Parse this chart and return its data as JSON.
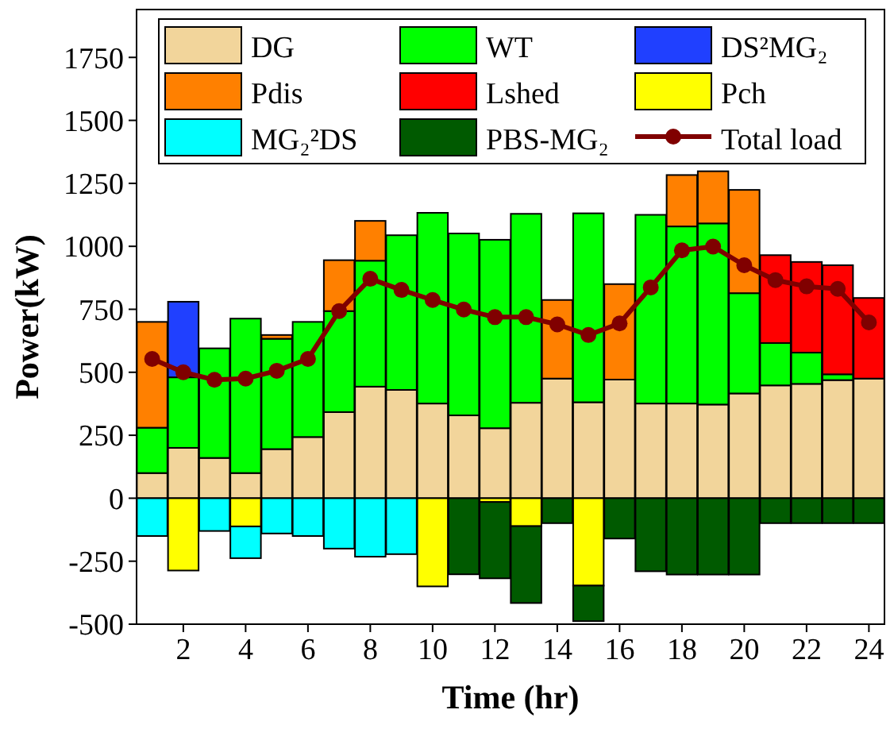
{
  "chart_data": {
    "type": "bar",
    "stacked": true,
    "xlabel": "Time (hr)",
    "ylabel": "Power(kW)",
    "x": [
      1,
      2,
      3,
      4,
      5,
      6,
      7,
      8,
      9,
      10,
      11,
      12,
      13,
      14,
      15,
      16,
      17,
      18,
      19,
      20,
      21,
      22,
      23,
      24
    ],
    "xlim": [
      0.5,
      24.5
    ],
    "xticks": [
      2,
      4,
      6,
      8,
      10,
      12,
      14,
      16,
      18,
      20,
      22,
      24
    ],
    "ylim": [
      -500,
      1940
    ],
    "yticks": [
      -500,
      -250,
      0,
      250,
      500,
      750,
      1000,
      1250,
      1500,
      1750
    ],
    "grid": false,
    "legend": "top",
    "series": [
      {
        "name": "DG",
        "color": "#f2d59b",
        "values": [
          100,
          200,
          160,
          100,
          195,
          243,
          342,
          443,
          430,
          376,
          329,
          278,
          379,
          475,
          381,
          471,
          376,
          376,
          372,
          416,
          448,
          454,
          469,
          475
        ]
      },
      {
        "name": "WT",
        "color": "#00ff00",
        "values": [
          180,
          280,
          435,
          613,
          438,
          457,
          401,
          500,
          614,
          757,
          722,
          748,
          750,
          0,
          750,
          0,
          749,
          703,
          719,
          398,
          168,
          124,
          23,
          0
        ]
      },
      {
        "name": "DS²MG₂",
        "color": "#2040ff",
        "values": [
          0,
          300,
          0,
          0,
          0,
          0,
          0,
          0,
          0,
          0,
          0,
          0,
          0,
          0,
          0,
          0,
          0,
          0,
          0,
          0,
          0,
          0,
          0,
          0
        ]
      },
      {
        "name": "Pdis",
        "color": "#ff8000",
        "values": [
          420,
          0,
          0,
          0,
          15,
          0,
          202,
          158,
          0,
          0,
          0,
          0,
          0,
          312,
          0,
          379,
          0,
          204,
          207,
          410,
          0,
          0,
          0,
          0
        ]
      },
      {
        "name": "Lshed",
        "color": "#ff0000",
        "values": [
          0,
          0,
          0,
          0,
          0,
          0,
          0,
          0,
          0,
          0,
          0,
          0,
          0,
          0,
          0,
          0,
          0,
          0,
          0,
          0,
          349,
          360,
          433,
          320
        ]
      },
      {
        "name": "Pch",
        "color": "#ffff00",
        "values": [
          0,
          -287,
          0,
          -112,
          0,
          0,
          0,
          0,
          0,
          -350,
          0,
          -15,
          -111,
          0,
          -347,
          0,
          0,
          0,
          0,
          0,
          0,
          0,
          0,
          0
        ]
      },
      {
        "name": "MG₂²DS",
        "color": "#00ffff",
        "values": [
          -150,
          0,
          -130,
          -126,
          -140,
          -150,
          -200,
          -232,
          -222,
          0,
          0,
          0,
          0,
          0,
          0,
          0,
          0,
          0,
          0,
          0,
          0,
          0,
          0,
          0
        ]
      },
      {
        "name": "PBS-MG₂",
        "color": "#005a00",
        "values": [
          0,
          0,
          0,
          0,
          0,
          0,
          0,
          0,
          0,
          0,
          -302,
          -303,
          -305,
          -99,
          -141,
          -160,
          -290,
          -303,
          -303,
          -303,
          -99,
          -99,
          -99,
          -99
        ]
      },
      {
        "name": "Total load",
        "type": "line",
        "color": "#800000",
        "marker": "circle",
        "line_style": "solid",
        "values": [
          553,
          500,
          470,
          475,
          506,
          553,
          743,
          871,
          827,
          787,
          749,
          719,
          719,
          690,
          648,
          694,
          837,
          984,
          999,
          925,
          866,
          841,
          831,
          698
        ]
      }
    ]
  }
}
